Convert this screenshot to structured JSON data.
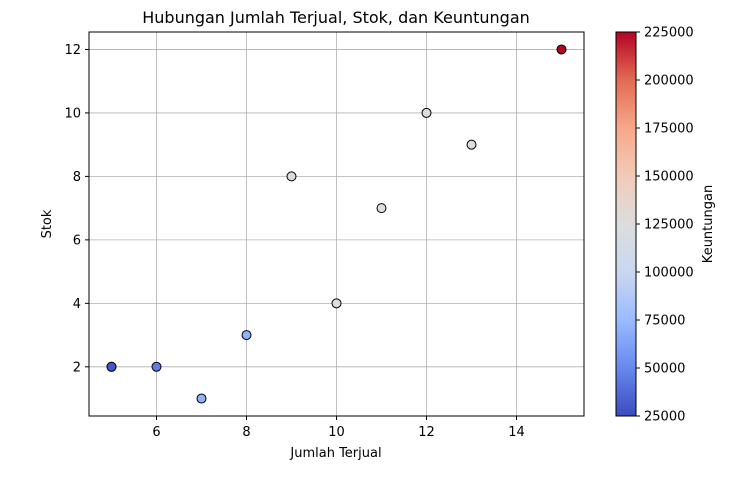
{
  "chart_data": {
    "type": "scatter",
    "title": "Hubungan Jumlah Terjual, Stok, dan Keuntungan",
    "xlabel": "Jumlah Terjual",
    "ylabel": "Stok",
    "xlim": [
      4.5,
      15.5
    ],
    "ylim": [
      0.45,
      12.55
    ],
    "xticks": [
      6,
      8,
      10,
      12,
      14
    ],
    "yticks": [
      2,
      4,
      6,
      8,
      10,
      12
    ],
    "grid": true,
    "colorbar": {
      "label": "Keuntungan",
      "min": 25000,
      "max": 225000,
      "ticks": [
        25000,
        50000,
        75000,
        100000,
        125000,
        150000,
        175000,
        200000,
        225000
      ],
      "colormap": "coolwarm",
      "colors": [
        "#3b4cc0",
        "#6788ee",
        "#9abbff",
        "#c9d7f0",
        "#dddddd",
        "#f2cbb7",
        "#f7a889",
        "#e36a53",
        "#b40426"
      ]
    },
    "points": [
      {
        "x": 5,
        "y": 2,
        "profit": 25000
      },
      {
        "x": 5,
        "y": 2,
        "profit": 30000
      },
      {
        "x": 6,
        "y": 2,
        "profit": 45000
      },
      {
        "x": 7,
        "y": 1,
        "profit": 70000
      },
      {
        "x": 8,
        "y": 3,
        "profit": 70000
      },
      {
        "x": 9,
        "y": 8,
        "profit": 120000
      },
      {
        "x": 10,
        "y": 4,
        "profit": 125000
      },
      {
        "x": 11,
        "y": 7,
        "profit": 125000
      },
      {
        "x": 12,
        "y": 10,
        "profit": 120000
      },
      {
        "x": 13,
        "y": 9,
        "profit": 125000
      },
      {
        "x": 15,
        "y": 12,
        "profit": 225000
      }
    ]
  }
}
